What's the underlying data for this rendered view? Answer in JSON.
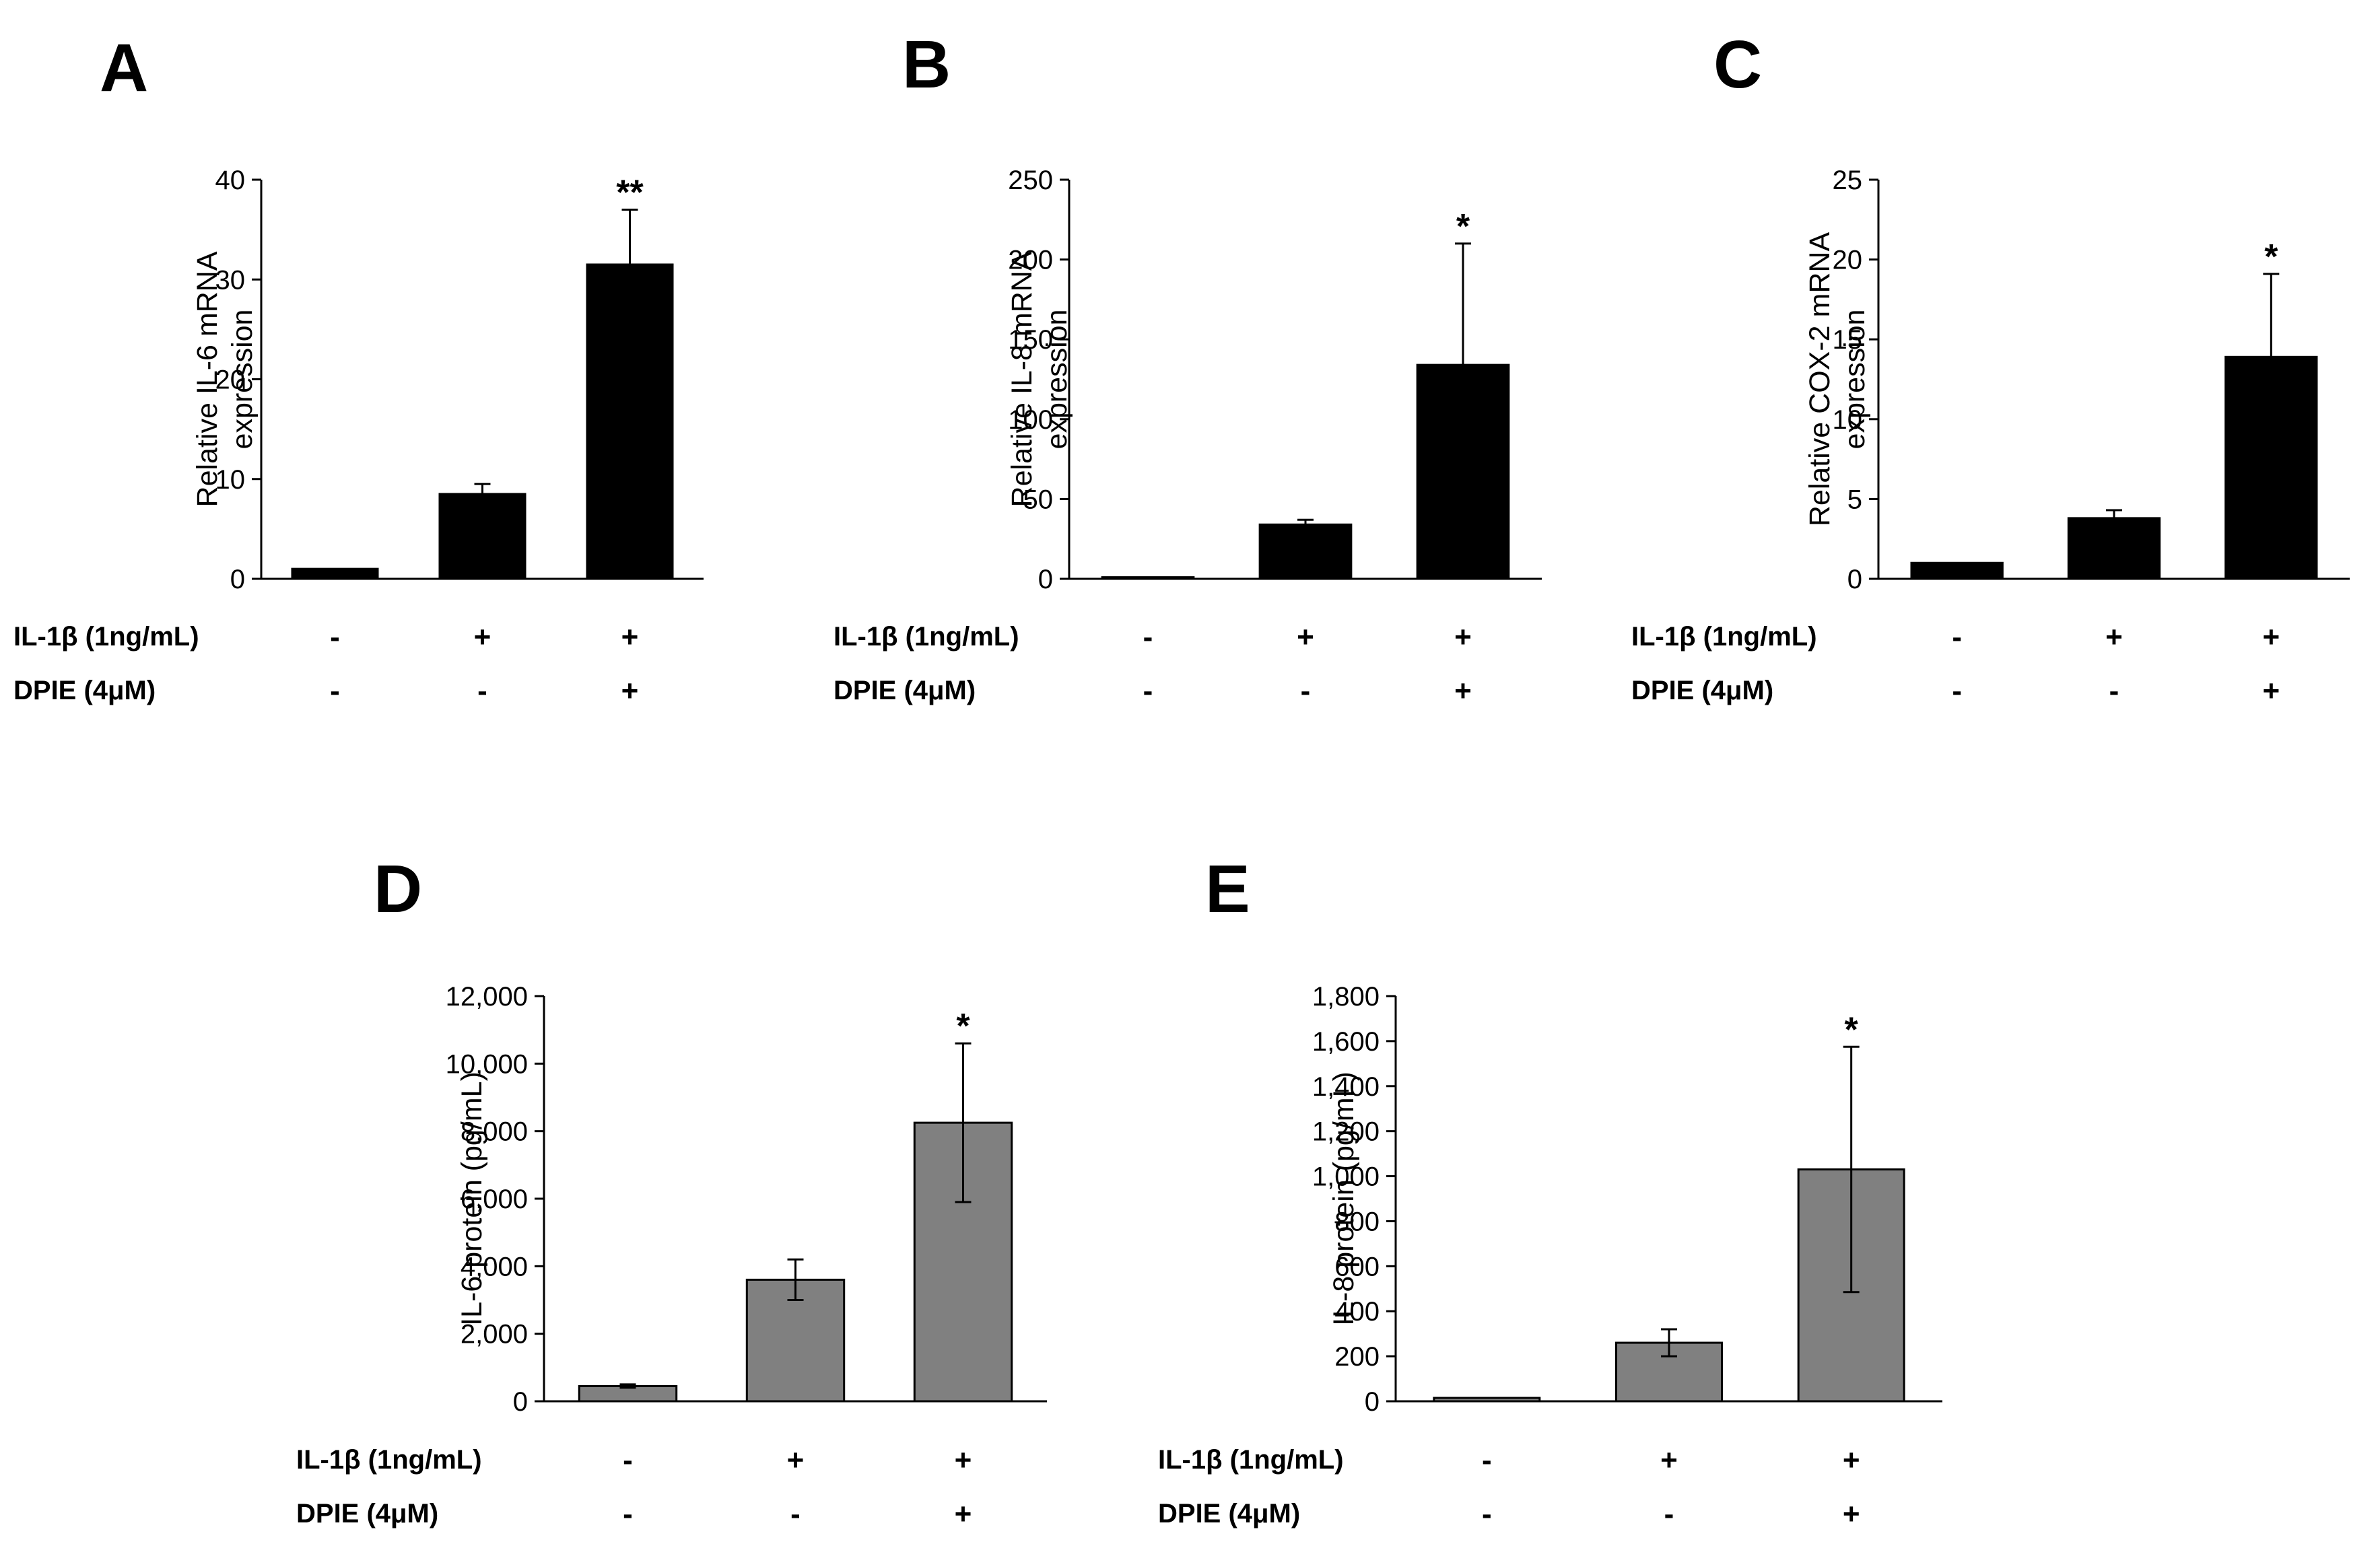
{
  "chart_data": [
    {
      "type": "bar",
      "panel_label": "A",
      "ylabel_lines": [
        "Relative IL-6 mRNA",
        "expression"
      ],
      "ylim": [
        0,
        40
      ],
      "yticks": [
        "0",
        "10",
        "20",
        "30",
        "40"
      ],
      "categories": [
        "control",
        "IL-1β",
        "IL-1β + DPIE"
      ],
      "values": [
        1,
        8.5,
        31.5
      ],
      "errors": [
        0,
        1.0,
        5.5
      ],
      "significance": [
        "",
        "",
        "**"
      ],
      "bar_color": "#000000",
      "conditions": [
        {
          "label": "IL-1β (1ng/mL)",
          "signs": [
            "-",
            "+",
            "+"
          ]
        },
        {
          "label": "DPIE  (4μM)",
          "signs": [
            "-",
            "-",
            "+"
          ]
        }
      ]
    },
    {
      "type": "bar",
      "panel_label": "B",
      "ylabel_lines": [
        "Relative IL-8 mRNA",
        "expression"
      ],
      "ylim": [
        0,
        250
      ],
      "yticks": [
        "0",
        "50",
        "100",
        "150",
        "200",
        "250"
      ],
      "categories": [
        "control",
        "IL-1β",
        "IL-1β + DPIE"
      ],
      "values": [
        1,
        34,
        134
      ],
      "errors": [
        0,
        3,
        76
      ],
      "significance": [
        "",
        "",
        "*"
      ],
      "bar_color": "#000000",
      "conditions": [
        {
          "label": "IL-1β (1ng/mL)",
          "signs": [
            "-",
            "+",
            "+"
          ]
        },
        {
          "label": "DPIE  (4μM)",
          "signs": [
            "-",
            "-",
            "+"
          ]
        }
      ]
    },
    {
      "type": "bar",
      "panel_label": "C",
      "ylabel_lines": [
        "Relative COX-2 mRNA",
        "expression"
      ],
      "ylim": [
        0,
        25
      ],
      "yticks": [
        "0",
        "5",
        "10",
        "15",
        "20",
        "25"
      ],
      "categories": [
        "control",
        "IL-1β",
        "IL-1β + DPIE"
      ],
      "values": [
        1,
        3.8,
        13.9
      ],
      "errors": [
        0,
        0.5,
        5.2
      ],
      "significance": [
        "",
        "",
        "*"
      ],
      "bar_color": "#000000",
      "conditions": [
        {
          "label": "IL-1β (1ng/mL)",
          "signs": [
            "-",
            "+",
            "+"
          ]
        },
        {
          "label": "DPIE  (4μM)",
          "signs": [
            "-",
            "-",
            "+"
          ]
        }
      ]
    },
    {
      "type": "bar",
      "panel_label": "D",
      "ylabel_lines": [
        "IL-6 protein (pg/mL)"
      ],
      "ylim": [
        0,
        12000
      ],
      "yticks": [
        "0",
        "2,000",
        "4,000",
        "6,000",
        "8,000",
        "10,000",
        "12,000"
      ],
      "categories": [
        "control",
        "IL-1β",
        "IL-1β + DPIE"
      ],
      "values": [
        450,
        3600,
        8250
      ],
      "errors": [
        50,
        600,
        2350
      ],
      "significance": [
        "",
        "",
        "*"
      ],
      "bar_color": "#808080",
      "conditions": [
        {
          "label": "IL-1β (1ng/mL)",
          "signs": [
            "-",
            "+",
            "+"
          ]
        },
        {
          "label": "DPIE  (4μM)",
          "signs": [
            "-",
            "-",
            "+"
          ]
        }
      ]
    },
    {
      "type": "bar",
      "panel_label": "E",
      "ylabel_lines": [
        "IL-8 protein (pg/mL)"
      ],
      "ylim": [
        0,
        1800
      ],
      "yticks": [
        "0",
        "200",
        "400",
        "600",
        "800",
        "1,000",
        "1,200",
        "1,400",
        "1,600",
        "1,800"
      ],
      "categories": [
        "control",
        "IL-1β",
        "IL-1β + DPIE"
      ],
      "values": [
        15,
        260,
        1030
      ],
      "errors": [
        0,
        60,
        545
      ],
      "significance": [
        "",
        "",
        "*"
      ],
      "bar_color": "#808080",
      "conditions": [
        {
          "label": "IL-1β (1ng/mL)",
          "signs": [
            "-",
            "+",
            "+"
          ]
        },
        {
          "label": "DPIE  (4μM)",
          "signs": [
            "-",
            "-",
            "+"
          ]
        }
      ]
    }
  ]
}
